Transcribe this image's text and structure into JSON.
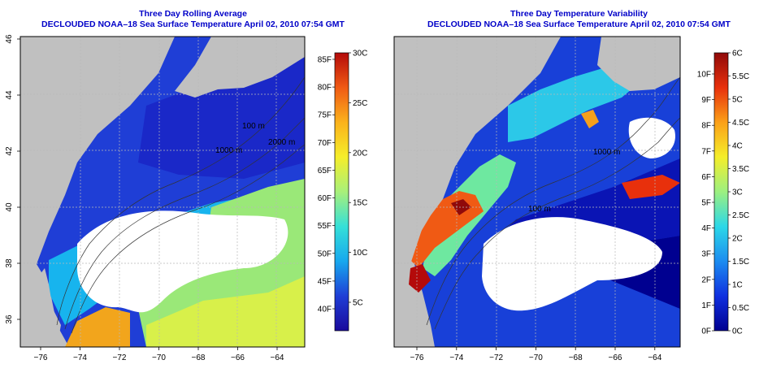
{
  "panels": [
    {
      "title": "Three Day Rolling Average",
      "subtitle": "DECLOUDED NOAA–18 Sea Surface Temperature April 02, 2010 07:54 GMT",
      "x_ticks": [
        "−76",
        "−74",
        "−72",
        "−70",
        "−68",
        "−66",
        "−64"
      ],
      "y_ticks": [
        "36",
        "38",
        "40",
        "42",
        "44",
        "46"
      ],
      "contour_labels": [
        "100 m",
        "1000 m",
        "2000 m"
      ],
      "colorbar": {
        "left_ticks": [
          "40F",
          "45F",
          "50F",
          "55F",
          "60F",
          "65F",
          "70F",
          "75F",
          "80F",
          "85F"
        ],
        "right_ticks": [
          "5C",
          "10C",
          "15C",
          "20C",
          "25C",
          "30C"
        ],
        "colors": [
          "#1a0a9c",
          "#1f3ed6",
          "#17a8ee",
          "#35e0d8",
          "#a8f07a",
          "#f5ee2a",
          "#fbb21c",
          "#f05a14",
          "#b40a0a"
        ]
      }
    },
    {
      "title": "Three Day Temperature Variability",
      "subtitle": "DECLOUDED NOAA–18 Sea Surface Temperature April 02, 2010 07:54 GMT",
      "x_ticks": [
        "−76",
        "−74",
        "−72",
        "−70",
        "−68",
        "−66",
        "−64"
      ],
      "y_ticks": [
        "36",
        "38",
        "40",
        "42",
        "44",
        "46"
      ],
      "contour_labels": [
        "100 m",
        "1000 m"
      ],
      "colorbar": {
        "left_ticks": [
          "0F",
          "1F",
          "2F",
          "3F",
          "4F",
          "5F",
          "6F",
          "7F",
          "8F",
          "9F",
          "10F"
        ],
        "right_ticks": [
          "0C",
          "0.5C",
          "1C",
          "1.5C",
          "2C",
          "2.5C",
          "3C",
          "3.5C",
          "4C",
          "4.5C",
          "5C",
          "5.5C",
          "6C"
        ],
        "colors": [
          "#000090",
          "#1030e0",
          "#1c8cf0",
          "#2cd8e8",
          "#9cf080",
          "#f5ee2a",
          "#fba018",
          "#e8300c",
          "#900a0a"
        ]
      }
    }
  ]
}
